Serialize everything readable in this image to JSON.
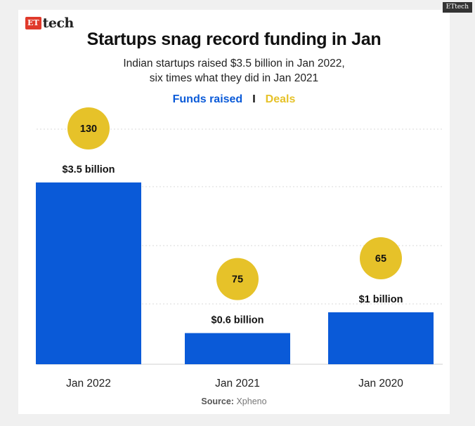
{
  "branding": {
    "logo_et": "ET",
    "logo_tech": "tech",
    "corner_tag": "ETtech"
  },
  "chart_data": {
    "type": "bar",
    "title": "Startups snag record funding in Jan",
    "subtitle_line1": "Indian startups raised $3.5 billion in Jan 2022,",
    "subtitle_line2": "six times what they did in Jan 2021",
    "categories": [
      "Jan 2022",
      "Jan 2021",
      "Jan 2020"
    ],
    "series": [
      {
        "name": "Funds raised",
        "unit": "billion USD",
        "values": [
          3.5,
          0.6,
          1.0
        ],
        "labels": [
          "$3.5 billion",
          "$0.6 billion",
          "$1 billion"
        ],
        "color": "#0a5ad8"
      },
      {
        "name": "Deals",
        "values": [
          130,
          75,
          65
        ],
        "labels": [
          "130",
          "75",
          "65"
        ],
        "color": "#e6c229"
      }
    ],
    "legend": {
      "funds": "Funds raised",
      "separator": "I",
      "deals": "Deals",
      "placement": "top-center"
    },
    "ylim": [
      0,
      4.5
    ],
    "grid": true,
    "source_label": "Source:",
    "source": "Xpheno"
  }
}
